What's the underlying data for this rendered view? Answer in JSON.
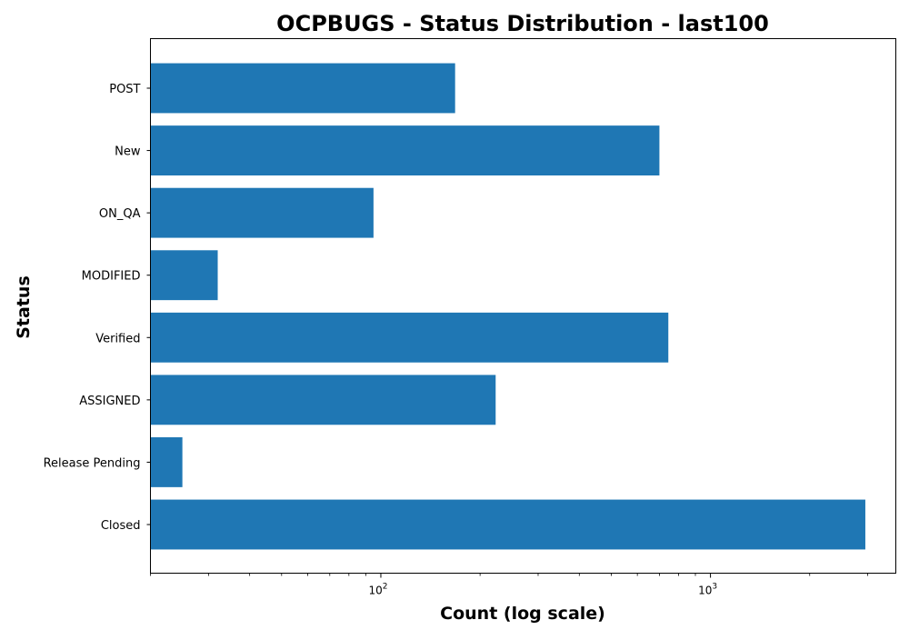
{
  "chart_data": {
    "type": "bar",
    "orientation": "horizontal",
    "title": "OCPBUGS - Status Distribution - last100",
    "xlabel": "Count (log scale)",
    "ylabel": "Status",
    "x_scale": "log",
    "xlim": [
      20,
      3650
    ],
    "x_ticks": [
      {
        "value": 100,
        "base": "10",
        "exp": "2"
      },
      {
        "value": 1000,
        "base": "10",
        "exp": "3"
      }
    ],
    "categories": [
      "POST",
      "New",
      "ON_QA",
      "MODIFIED",
      "Verified",
      "ASSIGNED",
      "Release Pending",
      "Closed"
    ],
    "values": [
      168,
      700,
      95,
      32,
      745,
      223,
      25,
      2950
    ],
    "color": "#1f77b4",
    "grid": false,
    "legend": "none"
  }
}
